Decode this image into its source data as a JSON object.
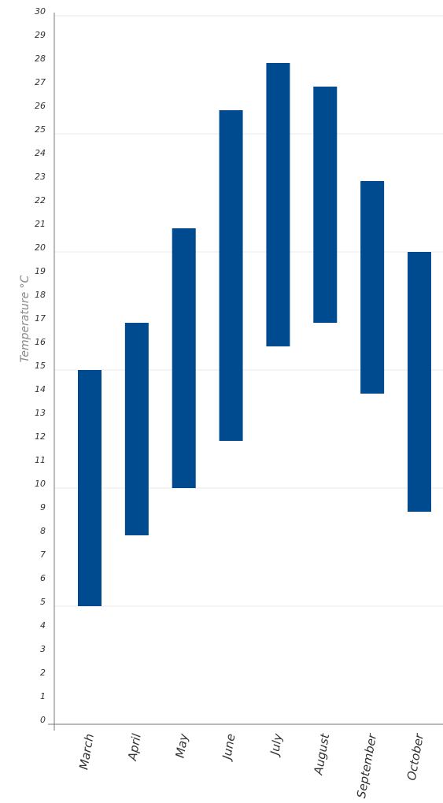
{
  "chart_data": {
    "type": "bar",
    "subtype": "floating-range",
    "title": "",
    "xlabel": "",
    "ylabel": "Temperature °C",
    "ylim": [
      0,
      30
    ],
    "y_ticks": [
      0,
      1,
      2,
      3,
      4,
      5,
      6,
      7,
      8,
      9,
      10,
      11,
      12,
      13,
      14,
      15,
      16,
      17,
      18,
      19,
      20,
      21,
      22,
      23,
      24,
      25,
      26,
      27,
      28,
      29,
      30
    ],
    "gridlines_at": [
      5,
      10,
      15,
      20,
      25,
      30
    ],
    "grid": true,
    "legend": "none",
    "bar_color": "#004a8f",
    "categories": [
      "March",
      "April",
      "May",
      "June",
      "July",
      "August",
      "September",
      "October"
    ],
    "ranges": [
      {
        "low": 5,
        "high": 15
      },
      {
        "low": 8,
        "high": 17
      },
      {
        "low": 10,
        "high": 21
      },
      {
        "low": 12,
        "high": 26
      },
      {
        "low": 16,
        "high": 28
      },
      {
        "low": 17,
        "high": 27
      },
      {
        "low": 14,
        "high": 23
      },
      {
        "low": 9,
        "high": 20
      }
    ]
  }
}
